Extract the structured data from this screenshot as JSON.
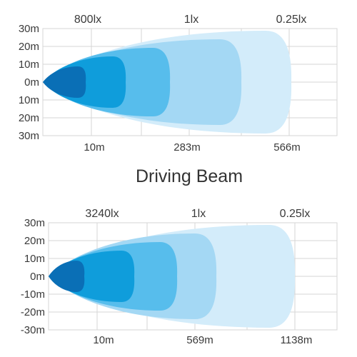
{
  "panels": [
    {
      "lux_labels": [
        "800lx",
        "1lx",
        "0.25lx"
      ],
      "y_ticks": [
        "30m",
        "20m",
        "10m",
        "0m",
        "10m",
        "20m",
        "30m"
      ],
      "x_labels": [
        "10m",
        "283m",
        "566m"
      ]
    },
    {
      "lux_labels": [
        "3240lx",
        "1lx",
        "0.25lx"
      ],
      "y_ticks": [
        "30m",
        "20m",
        "10m",
        "0m",
        "-10m",
        "-20m",
        "-30m"
      ],
      "x_labels": [
        "10m",
        "569m",
        "1138m"
      ]
    }
  ],
  "title": "Driving Beam",
  "colors": {
    "contours": [
      "#d3ecfa",
      "#a4d8f4",
      "#57bdec",
      "#0f9ddb",
      "#0a6fb6",
      "#114f8e"
    ],
    "grid": "#d6d6d6"
  }
}
